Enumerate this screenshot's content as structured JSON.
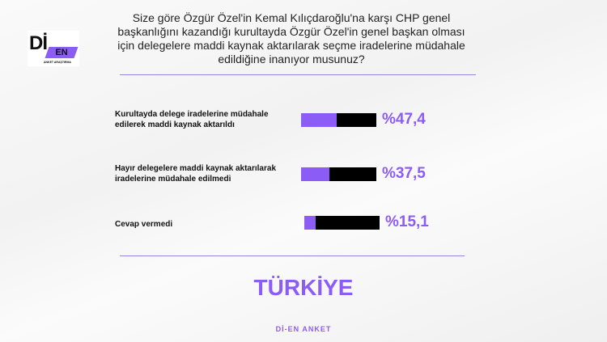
{
  "logo": {
    "main": "Dİ",
    "badge": "EN",
    "sub": "ANKET ARAŞTIRMA"
  },
  "question": "Size göre Özgür Özel'in Kemal Kılıçdaroğlu'na karşı CHP genel başkanlığını kazandığı kurultayda Özgür Özel'in genel başkan olması için delegelere maddi kaynak aktarılarak seçme iradelerine müdahale edildiğine inanıyor musunuz?",
  "chart_data": {
    "type": "bar",
    "orientation": "horizontal",
    "categories": [
      "Kurultayda delege iradelerine müdahale edilerek maddi kaynak aktarıldı",
      "Hayır delegelere maddi kaynak aktarılarak iradelerine müdahale edilmedi",
      "Cevap vermedi"
    ],
    "values": [
      47.4,
      37.5,
      15.1
    ],
    "value_labels": [
      "%47,4",
      "%37,5",
      "%15,1"
    ],
    "xlim": [
      0,
      100
    ],
    "colors": {
      "fill": "#8b5cf6",
      "track": "#000000"
    }
  },
  "country": "TÜRKİYE",
  "footer": "Dİ-EN ANKET"
}
